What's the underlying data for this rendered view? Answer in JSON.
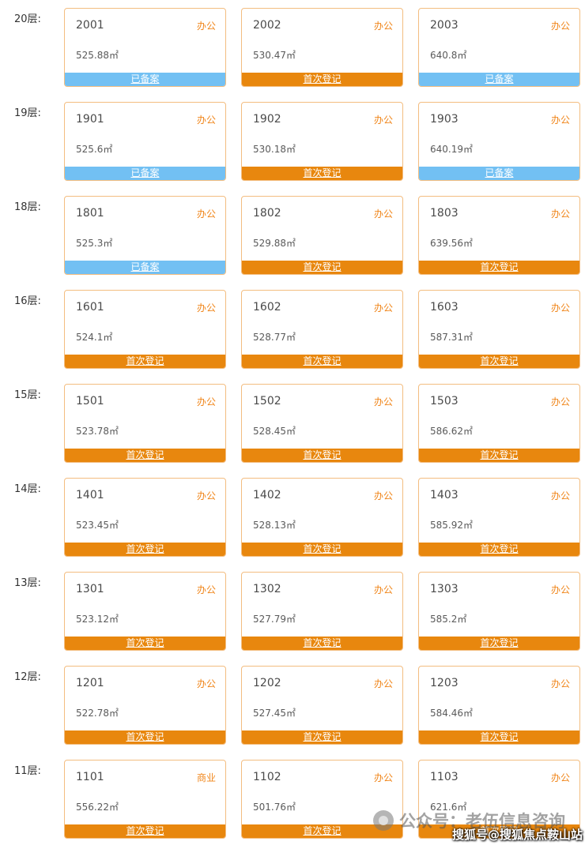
{
  "legend": {
    "registered_label": "已备案",
    "first_label": "首次登记"
  },
  "colors": {
    "status_first_bg": "#e8870e",
    "status_registered_bg": "#72c0f3",
    "card_border": "#f3bd80",
    "tag_text": "#f08519"
  },
  "floors": [
    {
      "label": "20层:",
      "units": [
        {
          "number": "2001",
          "tag": "办公",
          "area": "525.88㎡",
          "status": "已备案",
          "status_type": "registered"
        },
        {
          "number": "2002",
          "tag": "办公",
          "area": "530.47㎡",
          "status": "首次登记",
          "status_type": "first"
        },
        {
          "number": "2003",
          "tag": "办公",
          "area": "640.8㎡",
          "status": "已备案",
          "status_type": "registered"
        }
      ]
    },
    {
      "label": "19层:",
      "units": [
        {
          "number": "1901",
          "tag": "办公",
          "area": "525.6㎡",
          "status": "已备案",
          "status_type": "registered"
        },
        {
          "number": "1902",
          "tag": "办公",
          "area": "530.18㎡",
          "status": "首次登记",
          "status_type": "first"
        },
        {
          "number": "1903",
          "tag": "办公",
          "area": "640.19㎡",
          "status": "已备案",
          "status_type": "registered"
        }
      ]
    },
    {
      "label": "18层:",
      "units": [
        {
          "number": "1801",
          "tag": "办公",
          "area": "525.3㎡",
          "status": "已备案",
          "status_type": "registered"
        },
        {
          "number": "1802",
          "tag": "办公",
          "area": "529.88㎡",
          "status": "首次登记",
          "status_type": "first"
        },
        {
          "number": "1803",
          "tag": "办公",
          "area": "639.56㎡",
          "status": "首次登记",
          "status_type": "first"
        }
      ]
    },
    {
      "label": "16层:",
      "units": [
        {
          "number": "1601",
          "tag": "办公",
          "area": "524.1㎡",
          "status": "首次登记",
          "status_type": "first"
        },
        {
          "number": "1602",
          "tag": "办公",
          "area": "528.77㎡",
          "status": "首次登记",
          "status_type": "first"
        },
        {
          "number": "1603",
          "tag": "办公",
          "area": "587.31㎡",
          "status": "首次登记",
          "status_type": "first"
        }
      ]
    },
    {
      "label": "15层:",
      "units": [
        {
          "number": "1501",
          "tag": "办公",
          "area": "523.78㎡",
          "status": "首次登记",
          "status_type": "first"
        },
        {
          "number": "1502",
          "tag": "办公",
          "area": "528.45㎡",
          "status": "首次登记",
          "status_type": "first"
        },
        {
          "number": "1503",
          "tag": "办公",
          "area": "586.62㎡",
          "status": "首次登记",
          "status_type": "first"
        }
      ]
    },
    {
      "label": "14层:",
      "units": [
        {
          "number": "1401",
          "tag": "办公",
          "area": "523.45㎡",
          "status": "首次登记",
          "status_type": "first"
        },
        {
          "number": "1402",
          "tag": "办公",
          "area": "528.13㎡",
          "status": "首次登记",
          "status_type": "first"
        },
        {
          "number": "1403",
          "tag": "办公",
          "area": "585.92㎡",
          "status": "首次登记",
          "status_type": "first"
        }
      ]
    },
    {
      "label": "13层:",
      "units": [
        {
          "number": "1301",
          "tag": "办公",
          "area": "523.12㎡",
          "status": "首次登记",
          "status_type": "first"
        },
        {
          "number": "1302",
          "tag": "办公",
          "area": "527.79㎡",
          "status": "首次登记",
          "status_type": "first"
        },
        {
          "number": "1303",
          "tag": "办公",
          "area": "585.2㎡",
          "status": "首次登记",
          "status_type": "first"
        }
      ]
    },
    {
      "label": "12层:",
      "units": [
        {
          "number": "1201",
          "tag": "办公",
          "area": "522.78㎡",
          "status": "首次登记",
          "status_type": "first"
        },
        {
          "number": "1202",
          "tag": "办公",
          "area": "527.45㎡",
          "status": "首次登记",
          "status_type": "first"
        },
        {
          "number": "1203",
          "tag": "办公",
          "area": "584.46㎡",
          "status": "首次登记",
          "status_type": "first"
        }
      ]
    },
    {
      "label": "11层:",
      "units": [
        {
          "number": "1101",
          "tag": "商业",
          "area": "556.22㎡",
          "status": "首次登记",
          "status_type": "first"
        },
        {
          "number": "1102",
          "tag": "办公",
          "area": "501.76㎡",
          "status": "首次登记",
          "status_type": "first"
        },
        {
          "number": "1103",
          "tag": "办公",
          "area": "621.6㎡",
          "status": "首次登记",
          "status_type": "first"
        }
      ]
    }
  ],
  "watermark": {
    "text": "公众号：老伍信息咨询",
    "badge": "搜狐号@搜狐焦点鞍山站"
  }
}
